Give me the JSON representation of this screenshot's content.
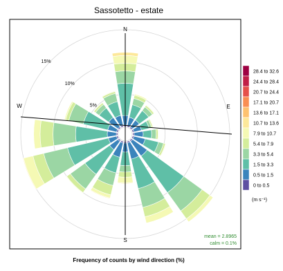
{
  "chart_data": {
    "type": "wind-rose",
    "title": "Sassotetto - estate",
    "xlabel": "Frequency of counts by wind direction (%)",
    "directions": [
      "N",
      "NNE",
      "NE",
      "ENE",
      "E",
      "ESE",
      "SE",
      "SSE",
      "S",
      "SSW",
      "SW",
      "WSW",
      "W",
      "WNW",
      "NW",
      "NNW"
    ],
    "direction_angles": [
      0,
      22.5,
      45,
      67.5,
      90,
      112.5,
      135,
      157.5,
      180,
      202.5,
      225,
      247.5,
      270,
      292.5,
      315,
      337.5
    ],
    "axis_labels": [
      "N",
      "E",
      "S",
      "W"
    ],
    "radial_ticks": [
      {
        "value": 5,
        "label": "5%"
      },
      {
        "value": 10,
        "label": "10%"
      },
      {
        "value": 15,
        "label": "15%"
      }
    ],
    "rmax": 16.5,
    "grid": true,
    "speed_bins": [
      "0 to 0.5",
      "0.5 to 1.5",
      "1.5 to 3.3",
      "3.3 to 5.4",
      "5.4 to 7.9",
      "7.9 to 10.7",
      "10.7 to 13.6",
      "13.6 to 17.1",
      "17.1 to 20.7",
      "20.7 to 24.4",
      "24.4 to 28.4",
      "28.4 to 32.6"
    ],
    "bin_colors": [
      "#5e4fa2",
      "#3b84bc",
      "#5fbfa7",
      "#9bd6a4",
      "#d4ed9b",
      "#f5f9b4",
      "#fde89a",
      "#fdc270",
      "#f98e52",
      "#e5504a",
      "#c01f47",
      "#9e0142"
    ],
    "legend": {
      "position": "right",
      "unit": "(m s⁻¹)"
    },
    "cumulative_percent_by_direction": [
      [
        0.2,
        1.7,
        6.7,
        8.6,
        9.8,
        11.0,
        11.5,
        11.5,
        11.5,
        11.5,
        11.5,
        11.5
      ],
      [
        0.2,
        1.5,
        3.5,
        4.5,
        5.0,
        5.2,
        5.2,
        5.2,
        5.2,
        5.2,
        5.2,
        5.2
      ],
      [
        0.2,
        1.5,
        3.3,
        4.0,
        4.3,
        4.4,
        4.4,
        4.4,
        4.4,
        4.4,
        4.4,
        4.4
      ],
      [
        0.2,
        1.4,
        2.6,
        3.0,
        3.2,
        3.3,
        3.3,
        3.3,
        3.3,
        3.3,
        3.3,
        3.3
      ],
      [
        0.2,
        1.6,
        2.9,
        3.6,
        3.9,
        4.0,
        4.0,
        4.0,
        4.0,
        4.0,
        4.0,
        4.0
      ],
      [
        0.2,
        2.0,
        4.1,
        4.9,
        5.2,
        5.3,
        5.3,
        5.3,
        5.3,
        5.3,
        5.3,
        5.3
      ],
      [
        0.2,
        3.0,
        10.0,
        13.5,
        15.0,
        15.6,
        15.6,
        15.6,
        15.6,
        15.6,
        15.6,
        15.6
      ],
      [
        0.2,
        2.8,
        7.5,
        10.5,
        12.0,
        13.0,
        13.0,
        13.0,
        13.0,
        13.0,
        13.0,
        13.0
      ],
      [
        0.2,
        1.6,
        3.7,
        4.7,
        5.5,
        6.4,
        6.5,
        6.5,
        6.5,
        6.5,
        6.5,
        6.5
      ],
      [
        0.2,
        2.5,
        5.0,
        7.0,
        8.5,
        9.0,
        9.1,
        9.1,
        9.1,
        9.1,
        9.1,
        9.1
      ],
      [
        0.2,
        1.8,
        6.5,
        9.3,
        10.0,
        10.1,
        10.1,
        10.1,
        10.1,
        10.1,
        10.1,
        10.1
      ],
      [
        0.2,
        1.5,
        8.0,
        11.8,
        13.5,
        15.0,
        15.1,
        15.1,
        15.1,
        15.1,
        15.1,
        15.1
      ],
      [
        0.2,
        1.6,
        6.5,
        10.0,
        12.0,
        13.0,
        13.0,
        13.0,
        13.0,
        13.0,
        13.0,
        13.0
      ],
      [
        0.2,
        1.6,
        5.5,
        7.8,
        8.3,
        8.5,
        8.5,
        8.5,
        8.5,
        8.5,
        8.5,
        8.5
      ],
      [
        0.2,
        2.0,
        3.8,
        4.5,
        4.8,
        4.9,
        4.9,
        4.9,
        4.9,
        4.9,
        4.9,
        4.9
      ],
      [
        0.2,
        1.8,
        4.0,
        5.3,
        5.6,
        5.7,
        5.7,
        5.7,
        5.7,
        5.7,
        5.7,
        5.7
      ]
    ],
    "annotations": {
      "mean": "mean = 2.8965",
      "calm": "calm = 0.1%"
    },
    "annotation_color": "#2e8b2e"
  }
}
